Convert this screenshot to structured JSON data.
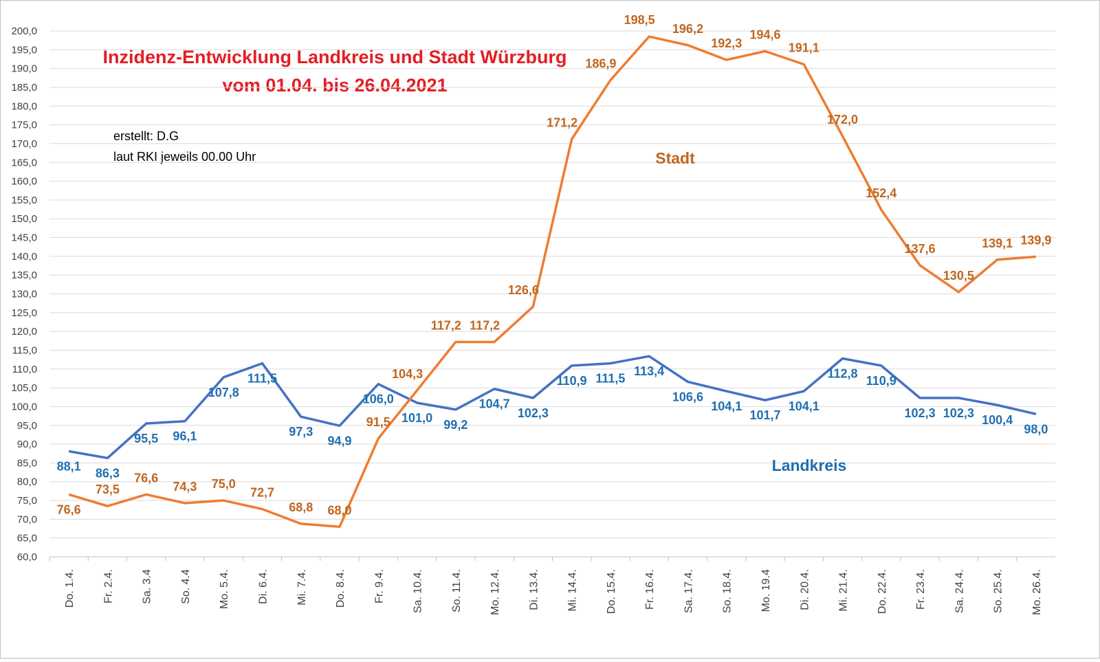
{
  "chart_data": {
    "type": "line",
    "title": "Inzidenz-Entwicklung Landkreis und Stadt Würzburg",
    "subtitle": "vom 01.04.  bis 26.04.2021",
    "annotations": [
      "erstellt:  D.G",
      "laut RKI jeweils 00.00 Uhr"
    ],
    "categories": [
      "Do. 1.4.",
      "Fr. 2.4.",
      "Sa. 3.4",
      "So. 4.4",
      "Mo. 5.4.",
      "Di. 6.4.",
      "Mi. 7.4.",
      "Do. 8.4.",
      "Fr. 9.4.",
      "Sa. 10.4.",
      "So. 11.4.",
      "Mo. 12.4.",
      "Di. 13.4.",
      "Mi. 14.4.",
      "Do. 15.4.",
      "Fr. 16.4.",
      "Sa. 17.4.",
      "So. 18.4.",
      "Mo. 19.4",
      "Di. 20.4.",
      "Mi. 21.4.",
      "Do. 22.4.",
      "Fr. 23.4.",
      "Sa. 24.4.",
      "So. 25.4.",
      "Mo. 26.4."
    ],
    "series": [
      {
        "name": "Landkreis",
        "color": "#4472c4",
        "label_color": "#1f6fb0",
        "values": [
          88.1,
          86.3,
          95.5,
          96.1,
          107.8,
          111.5,
          97.3,
          94.9,
          106.0,
          101.0,
          99.2,
          104.7,
          102.3,
          110.9,
          111.5,
          113.4,
          106.6,
          104.1,
          101.7,
          104.1,
          112.8,
          110.9,
          102.3,
          102.3,
          100.4,
          98.0
        ],
        "value_labels": [
          "88,1",
          "86,3",
          "95,5",
          "96,1",
          "107,8",
          "111,5",
          "97,3",
          "94,9",
          "106,0",
          "101,0",
          "99,2",
          "104,7",
          "102,3",
          "110,9",
          "111,5",
          "113,4",
          "106,6",
          "104,1",
          "101,7",
          "104,1",
          "112,8",
          "110,9",
          "102,3",
          "102,3",
          "100,4",
          "98,0"
        ]
      },
      {
        "name": "Stadt",
        "color": "#ed7d31",
        "label_color": "#c0661f",
        "values": [
          76.6,
          73.5,
          76.6,
          74.3,
          75.0,
          72.7,
          68.8,
          68.0,
          91.5,
          104.3,
          117.2,
          117.2,
          126.6,
          171.2,
          186.9,
          198.5,
          196.2,
          192.3,
          194.6,
          191.1,
          172.0,
          152.4,
          137.6,
          130.5,
          139.1,
          139.9
        ],
        "value_labels": [
          "76,6",
          "73,5",
          "76,6",
          "74,3",
          "75,0",
          "72,7",
          "68,8",
          "68,0",
          "91,5",
          "104,3",
          "117,2",
          "117,2",
          "126,6",
          "171,2",
          "186,9",
          "198,5",
          "196,2",
          "192,3",
          "194,6",
          "191,1",
          "172,0",
          "152,4",
          "137,6",
          "130,5",
          "139,1",
          "139,9"
        ]
      }
    ],
    "ylim": [
      60,
      200
    ],
    "yticks": [
      {
        "value": 60,
        "label": "60,0"
      },
      {
        "value": 65,
        "label": "65,0"
      },
      {
        "value": 70,
        "label": "70,0"
      },
      {
        "value": 75,
        "label": "75,0"
      },
      {
        "value": 80,
        "label": "80,0"
      },
      {
        "value": 85,
        "label": "85,0"
      },
      {
        "value": 90,
        "label": "90,0"
      },
      {
        "value": 95,
        "label": "95,0"
      },
      {
        "value": 100,
        "label": "100,0"
      },
      {
        "value": 105,
        "label": "105,0"
      },
      {
        "value": 110,
        "label": "110,0"
      },
      {
        "value": 115,
        "label": "115,0"
      },
      {
        "value": 120,
        "label": "120,0"
      },
      {
        "value": 125,
        "label": "125,0"
      },
      {
        "value": 130,
        "label": "130,0"
      },
      {
        "value": 135,
        "label": "135,0"
      },
      {
        "value": 140,
        "label": "140,0"
      },
      {
        "value": 145,
        "label": "145,0"
      },
      {
        "value": 150,
        "label": "150,0"
      },
      {
        "value": 155,
        "label": "155,0"
      },
      {
        "value": 160,
        "label": "160,0"
      },
      {
        "value": 165,
        "label": "165,0"
      },
      {
        "value": 170,
        "label": "170,0"
      },
      {
        "value": 175,
        "label": "175,0"
      },
      {
        "value": 180,
        "label": "180,0"
      },
      {
        "value": 185,
        "label": "185,0"
      },
      {
        "value": 190,
        "label": "190,0"
      },
      {
        "value": 195,
        "label": "195,0"
      },
      {
        "value": 200,
        "label": "200,0"
      }
    ],
    "grid": true
  }
}
